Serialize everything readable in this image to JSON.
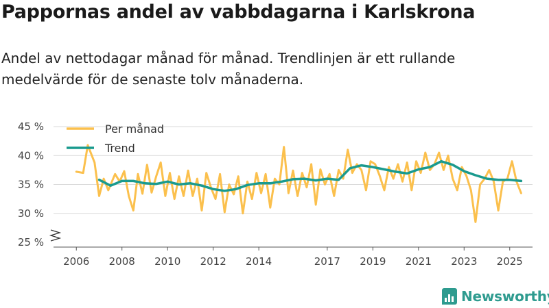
{
  "chart_data": {
    "type": "line",
    "title": "Pappornas andel av vabbdagarna i Karlskrona",
    "subtitle": "Andel av nettodagar månad för månad. Trendlinjen är ett rullande medelvärde för de senaste tolv månaderna.",
    "xlabel": "",
    "ylabel": "",
    "ylim": [
      25,
      45
    ],
    "y_ticks": [
      25,
      30,
      35,
      40,
      45
    ],
    "y_tick_labels": [
      "25 %",
      "30 %",
      "35 %",
      "40 %",
      "45 %"
    ],
    "x_ticks": [
      2006,
      2008,
      2010,
      2012,
      2014,
      2017,
      2019,
      2021,
      2023,
      2025
    ],
    "x_tick_labels": [
      "2006",
      "2008",
      "2010",
      "2012",
      "2014",
      "2017",
      "2019",
      "2021",
      "2023",
      "2025"
    ],
    "colors": {
      "monthly": "#fbc04d",
      "trend": "#1a9a8e",
      "grid": "#d9d9d9",
      "axis": "#555555"
    },
    "legend": {
      "position": "top-left",
      "items": [
        "Per månad",
        "Trend"
      ]
    },
    "series": [
      {
        "name": "Per månad",
        "x": [
          2006.0,
          2006.3,
          2006.5,
          2006.8,
          2007.0,
          2007.2,
          2007.4,
          2007.7,
          2007.9,
          2008.1,
          2008.3,
          2008.5,
          2008.7,
          2008.9,
          2009.1,
          2009.3,
          2009.5,
          2009.7,
          2009.9,
          2010.1,
          2010.3,
          2010.5,
          2010.7,
          2010.9,
          2011.1,
          2011.3,
          2011.5,
          2011.7,
          2011.9,
          2012.1,
          2012.3,
          2012.5,
          2012.7,
          2012.9,
          2013.1,
          2013.3,
          2013.5,
          2013.7,
          2013.9,
          2014.1,
          2014.3,
          2014.5,
          2014.7,
          2014.9,
          2015.1,
          2015.3,
          2015.5,
          2015.7,
          2015.9,
          2016.1,
          2016.3,
          2016.5,
          2016.7,
          2016.9,
          2017.1,
          2017.3,
          2017.5,
          2017.7,
          2017.9,
          2018.1,
          2018.3,
          2018.5,
          2018.7,
          2018.9,
          2019.1,
          2019.3,
          2019.5,
          2019.7,
          2019.9,
          2020.1,
          2020.3,
          2020.5,
          2020.7,
          2020.9,
          2021.1,
          2021.3,
          2021.5,
          2021.7,
          2021.9,
          2022.1,
          2022.3,
          2022.5,
          2022.7,
          2022.9,
          2023.1,
          2023.3,
          2023.5,
          2023.7,
          2023.9,
          2024.1,
          2024.3,
          2024.5,
          2024.7,
          2024.9,
          2025.1,
          2025.3,
          2025.5
        ],
        "values": [
          37.2,
          37.0,
          41.8,
          38.8,
          33.0,
          36.0,
          34.0,
          36.8,
          35.5,
          37.3,
          33.0,
          30.5,
          36.8,
          33.4,
          38.4,
          33.6,
          36.4,
          38.8,
          33.0,
          37.0,
          32.5,
          36.4,
          33.0,
          37.4,
          33.0,
          36.0,
          30.5,
          37.0,
          34.5,
          32.5,
          36.8,
          30.2,
          35.0,
          33.3,
          36.4,
          30.0,
          35.5,
          32.5,
          37.0,
          33.5,
          36.8,
          31.0,
          36.0,
          35.0,
          41.5,
          33.5,
          37.4,
          33.0,
          37.0,
          34.5,
          38.5,
          31.5,
          37.6,
          35.0,
          36.8,
          33.0,
          37.5,
          36.0,
          41.0,
          37.0,
          38.5,
          37.5,
          34.0,
          39.0,
          38.5,
          36.5,
          34.0,
          38.0,
          36.0,
          38.5,
          35.5,
          38.8,
          34.0,
          39.0,
          37.0,
          40.5,
          37.5,
          38.5,
          40.5,
          37.5,
          40.0,
          36.0,
          34.0,
          38.0,
          36.5,
          34.0,
          28.5,
          35.0,
          36.0,
          37.5,
          35.5,
          30.5,
          35.5,
          36.0,
          39.0,
          35.5,
          33.5
        ]
      },
      {
        "name": "Trend",
        "x": [
          2007.0,
          2007.5,
          2008.0,
          2008.5,
          2009.0,
          2009.5,
          2010.0,
          2010.5,
          2011.0,
          2011.5,
          2012.0,
          2012.5,
          2013.0,
          2013.5,
          2014.0,
          2014.5,
          2015.0,
          2015.5,
          2016.0,
          2016.5,
          2017.0,
          2017.5,
          2018.0,
          2018.5,
          2019.0,
          2019.5,
          2020.0,
          2020.5,
          2021.0,
          2021.5,
          2022.0,
          2022.5,
          2023.0,
          2023.5,
          2024.0,
          2024.5,
          2025.0,
          2025.5
        ],
        "values": [
          35.8,
          34.8,
          35.6,
          35.6,
          35.2,
          35.1,
          35.5,
          35.0,
          35.2,
          34.8,
          34.2,
          33.9,
          34.2,
          34.9,
          35.2,
          35.2,
          35.5,
          35.9,
          36.0,
          35.7,
          36.0,
          35.8,
          37.8,
          38.3,
          38.0,
          37.6,
          37.2,
          36.9,
          37.6,
          38.0,
          39.0,
          38.4,
          37.3,
          36.6,
          36.0,
          35.8,
          35.8,
          35.6
        ]
      }
    ]
  },
  "brand": {
    "name": "Newsworthy",
    "icon": "bar-chart-icon"
  }
}
